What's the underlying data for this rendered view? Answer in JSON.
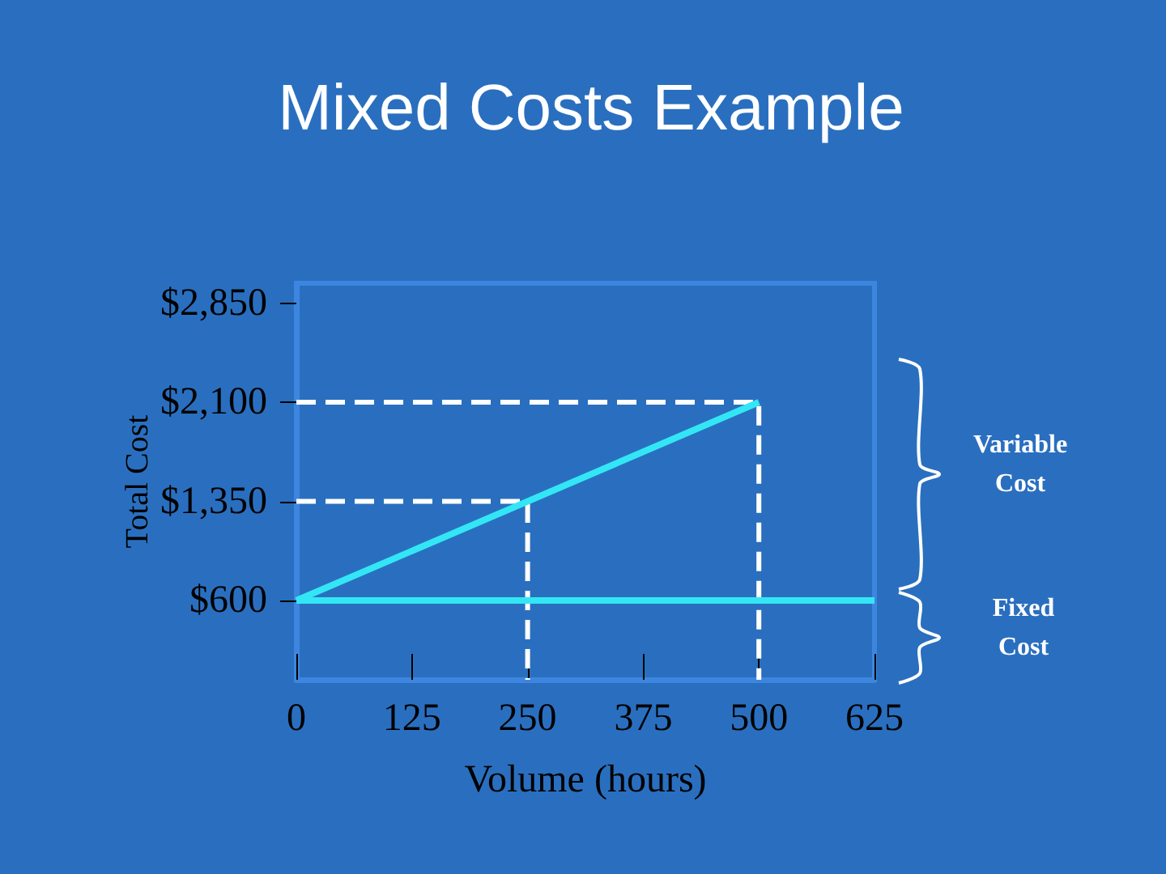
{
  "chart_data": {
    "type": "line",
    "title": "Mixed Costs Example",
    "xlabel": "Volume (hours)",
    "ylabel": "Total Cost",
    "xlim": [
      0,
      625
    ],
    "xticks": [
      0,
      125,
      250,
      375,
      500,
      625
    ],
    "ylim": [
      0,
      3000
    ],
    "yticks": [
      {
        "value": 600,
        "label": "$600"
      },
      {
        "value": 1350,
        "label": "$1,350"
      },
      {
        "value": 2100,
        "label": "$2,100"
      },
      {
        "value": 2850,
        "label": "$2,850"
      }
    ],
    "series": [
      {
        "color": "#33e6f5",
        "x": [
          0,
          500
        ],
        "values": [
          600,
          2100
        ]
      },
      {
        "color": "#33e6f5",
        "x": [
          0,
          625
        ],
        "values": [
          600,
          600
        ]
      },
      {
        "color": "#ffffff",
        "line_style": "dashed",
        "x": [
          0,
          500,
          500
        ],
        "values": [
          2100,
          2100,
          0
        ]
      },
      {
        "color": "#ffffff",
        "line_style": "dashed",
        "x": [
          0,
          250,
          250
        ],
        "values": [
          1350,
          1350,
          0
        ]
      }
    ],
    "annotations": [
      "Variable Cost",
      "Fixed Cost"
    ],
    "grid": false,
    "marker": "none"
  }
}
